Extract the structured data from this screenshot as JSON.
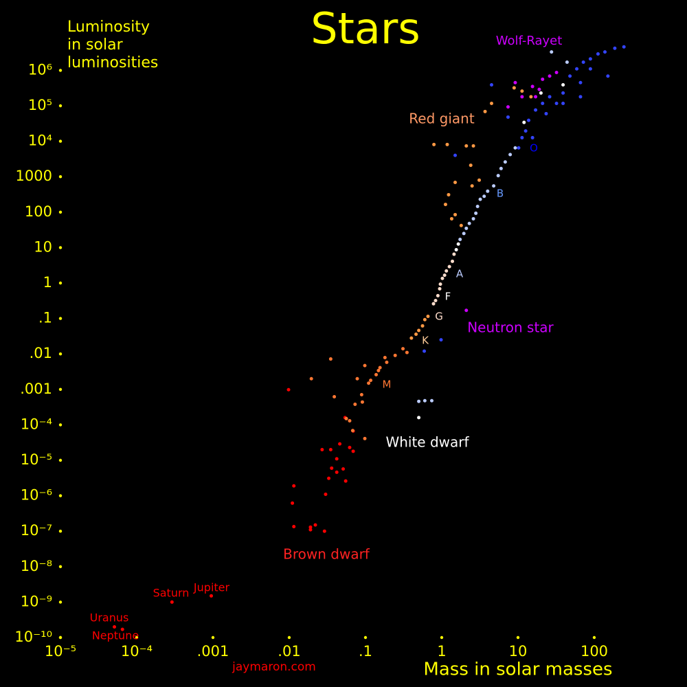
{
  "chart_data": {
    "type": "scatter",
    "title": "Stars",
    "ylabel": [
      "Luminosity",
      "in solar",
      "luminosities"
    ],
    "xlabel": "Mass in solar masses",
    "credit": "jaymaron.com",
    "xscale": "log",
    "yscale": "log",
    "background": "#000000",
    "axis_color": "#ffff00",
    "xlim": [
      1e-05,
      1000
    ],
    "ylim": [
      1e-10,
      10000000.0
    ],
    "xticks": [
      {
        "value": 1e-05,
        "label": "10⁻⁵"
      },
      {
        "value": 0.0001,
        "label": "10⁻⁴"
      },
      {
        "value": 0.001,
        "label": ".001"
      },
      {
        "value": 0.01,
        "label": ".01"
      },
      {
        "value": 0.1,
        "label": ".1"
      },
      1,
      10,
      100
    ],
    "yticks": [
      {
        "value": 1e-10,
        "label": "10⁻¹⁰"
      },
      {
        "value": 1e-09,
        "label": "10⁻⁹"
      },
      {
        "value": 1e-08,
        "label": "10⁻⁸"
      },
      {
        "value": 1e-07,
        "label": "10⁻⁷"
      },
      {
        "value": 1e-06,
        "label": "10⁻⁶"
      },
      {
        "value": 1e-05,
        "label": "10⁻⁵"
      },
      {
        "value": 0.0001,
        "label": "10⁻⁴"
      },
      {
        "value": 0.001,
        "label": ".001"
      },
      {
        "value": 0.01,
        "label": ".01"
      },
      {
        "value": 0.1,
        "label": ".1"
      },
      1,
      10,
      100,
      1000,
      {
        "value": 10000,
        "label": "10⁴"
      },
      {
        "value": 100000,
        "label": "10⁵"
      },
      {
        "value": 1000000,
        "label": "10⁶"
      }
    ],
    "annotations": [
      {
        "text": "Wolf-Rayet",
        "color": "#cc00ff"
      },
      {
        "text": "Red giant",
        "color": "#ff9966"
      },
      {
        "text": "O",
        "color": "#0000ff"
      },
      {
        "text": "B",
        "color": "#6699ff"
      },
      {
        "text": "A",
        "color": "#bbccff"
      },
      {
        "text": "F",
        "color": "#ffffff"
      },
      {
        "text": "G",
        "color": "#ffddcc"
      },
      {
        "text": "K",
        "color": "#ffcc99"
      },
      {
        "text": "M",
        "color": "#ff7733"
      },
      {
        "text": "Neutron star",
        "color": "#cc00ff"
      },
      {
        "text": "White dwarf",
        "color": "#ffffff"
      },
      {
        "text": "Brown dwarf",
        "color": "#ff2222"
      },
      {
        "text": "Saturn",
        "color": "#ff0000"
      },
      {
        "text": "Jupiter",
        "color": "#ff0000"
      },
      {
        "text": "Uranus",
        "color": "#ff0000"
      },
      {
        "text": "Neptune",
        "color": "#ff0000"
      }
    ],
    "series": [
      {
        "color": "#ff0000",
        "x": [
          0.0098,
          0.0115,
          0.011,
          0.0115,
          0.019,
          0.022,
          0.019,
          0.029,
          0.027,
          0.035,
          0.03,
          0.033,
          0.036,
          0.042,
          0.042,
          0.046,
          0.051,
          0.055,
          0.062,
          0.069,
          0.069,
          0.054,
          0.00095,
          0.00029,
          6.5e-05,
          5.1e-05
        ],
        "values": [
          0.00098,
          1.9e-06,
          6.2e-07,
          1.35e-07,
          1.3e-07,
          1.5e-07,
          1.1e-07,
          1e-07,
          2e-05,
          2e-05,
          1.1e-06,
          3.1e-06,
          6e-06,
          1.1e-05,
          4.6e-06,
          2.9e-05,
          5.7e-06,
          2.6e-06,
          2.3e-05,
          1.8e-05,
          6.7e-05,
          0.00016,
          1.5e-09,
          1e-09,
          1.7e-10,
          2e-10
        ]
      },
      {
        "color": "#ff7733",
        "x": [
          0.035,
          0.0195,
          0.039,
          0.098,
          0.078,
          0.089,
          0.091,
          0.073,
          0.056,
          0.062,
          0.068,
          0.098,
          0.11,
          0.117,
          0.138,
          0.148,
          0.155,
          0.19,
          0.18,
          0.245,
          0.31,
          0.35
        ],
        "values": [
          0.0072,
          0.002,
          0.00062,
          0.0047,
          0.002,
          0.00071,
          0.00044,
          0.00038,
          0.00015,
          0.00013,
          6.9e-05,
          4.1e-05,
          0.0015,
          0.0018,
          0.0026,
          0.0034,
          0.0041,
          0.0058,
          0.0079,
          0.0091,
          0.014,
          0.011
        ]
      },
      {
        "color": "#ff9944",
        "x": [
          0.4,
          0.46,
          0.5,
          0.56,
          0.6,
          0.66,
          0.79,
          1.18,
          2.1,
          2.6,
          2.4,
          1.5,
          1.23,
          1.12,
          1.35,
          1.5,
          1.8,
          2.5,
          3.1,
          3.7,
          4.5,
          8.9,
          11.3,
          14.8
        ],
        "values": [
          0.028,
          0.036,
          0.046,
          0.062,
          0.093,
          0.115,
          8100,
          8100,
          7400,
          7400,
          2100,
          690,
          310,
          165,
          65,
          85,
          42,
          550,
          800,
          69000,
          117000,
          320000,
          260000,
          180000
        ]
      },
      {
        "color": "#ffddcc",
        "x": [
          0.78,
          0.83,
          0.89,
          0.94,
          0.96,
          1.02,
          1.09,
          1.15,
          1.26,
          1.38,
          1.45
        ],
        "values": [
          0.26,
          0.32,
          0.44,
          0.69,
          0.93,
          1.35,
          1.66,
          2.2,
          2.9,
          4.1,
          6.5
        ]
      },
      {
        "color": "#ffffff",
        "x": [
          0.5,
          1.55,
          1.65,
          12,
          20,
          39
        ],
        "values": [
          0.00016,
          8.7,
          12.6,
          34000,
          230000,
          390000
        ]
      },
      {
        "color": "#bbccff",
        "x": [
          0.5,
          0.6,
          0.74,
          1.74,
          1.95,
          2.1,
          2.3,
          2.6,
          2.8,
          2.95,
          3.2,
          3.6,
          4.0,
          4.8,
          5.5,
          6.0,
          6.8,
          7.9,
          9.2,
          27.5,
          44
        ],
        "values": [
          0.00046,
          0.00048,
          0.00048,
          17,
          25,
          35,
          48,
          65,
          93,
          145,
          230,
          280,
          390,
          550,
          1070,
          1700,
          2600,
          4200,
          6500,
          3300000,
          1700000
        ]
      },
      {
        "color": "#3344ff",
        "x": [
          0.59,
          0.98,
          1.5,
          10.2,
          12.6,
          13.8,
          17,
          21,
          26,
          32,
          39,
          48,
          59,
          72,
          89,
          112,
          138,
          186,
          245,
          151,
          66,
          39,
          23.4,
          15.5,
          11.3,
          66,
          89,
          7.4,
          4.5
        ],
        "values": [
          0.012,
          0.025,
          4000,
          6500,
          19500,
          39000,
          76000,
          117000,
          180000,
          117000,
          230000,
          690000,
          1100000,
          1700000,
          2100000,
          2900000,
          3300000,
          4200000,
          4600000,
          690000,
          180000,
          117000,
          60000,
          12600,
          12600,
          450000,
          1100000,
          48000,
          390000
        ]
      },
      {
        "color": "#cc00ff",
        "x": [
          2.1,
          9.2,
          11.3,
          15.5,
          21,
          26,
          32,
          17,
          7.4,
          19
        ],
        "values": [
          0.17,
          450000,
          180000,
          350000,
          560000,
          690000,
          870000,
          180000,
          93000,
          290000
        ]
      }
    ]
  }
}
